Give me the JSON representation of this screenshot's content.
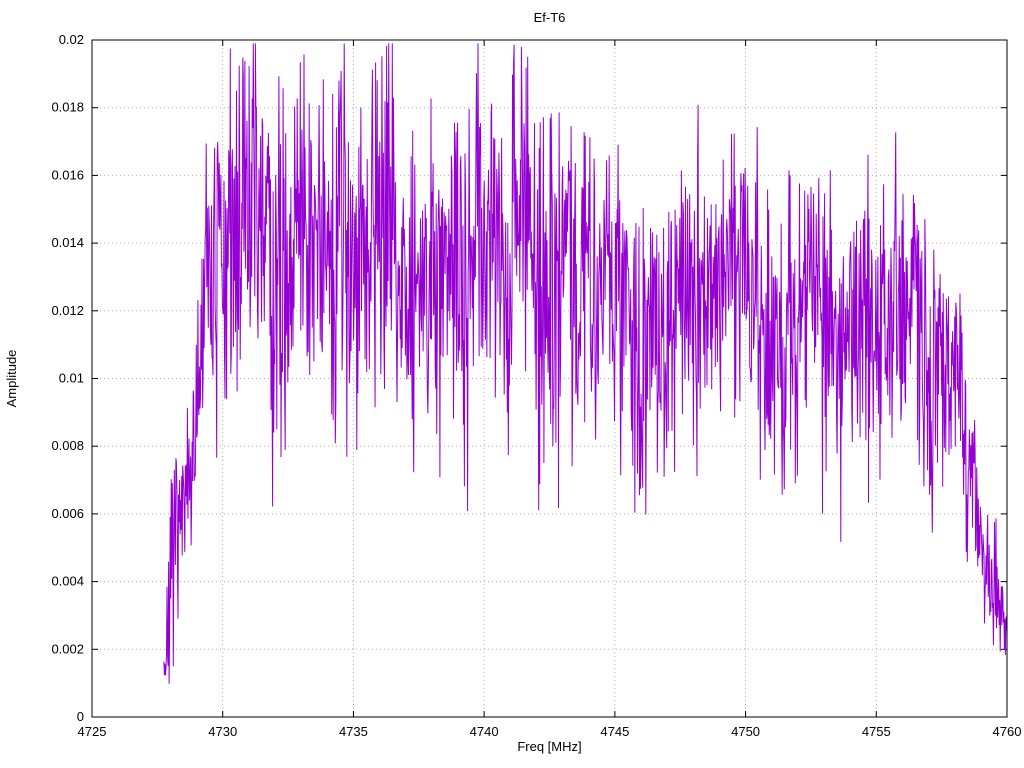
{
  "chart_data": {
    "type": "line",
    "title": "Ef-T6",
    "xlabel": "Freq [MHz]",
    "ylabel": "Amplitude",
    "xlim": [
      4725,
      4760
    ],
    "ylim": [
      0,
      0.02
    ],
    "x_tick_labels": [
      "4725",
      "4730",
      "4735",
      "4740",
      "4745",
      "4750",
      "4755",
      "4760"
    ],
    "x_tick_values": [
      4725,
      4730,
      4735,
      4740,
      4745,
      4750,
      4755,
      4760
    ],
    "y_tick_labels": [
      "0",
      "0.002",
      "0.004",
      "0.006",
      "0.008",
      "0.01",
      "0.012",
      "0.014",
      "0.016",
      "0.018",
      "0.02"
    ],
    "y_tick_values": [
      0,
      0.002,
      0.004,
      0.006,
      0.008,
      0.01,
      0.012,
      0.014,
      0.016,
      0.018,
      0.02
    ],
    "grid": true,
    "legend": "none",
    "line_color": "#9400d3",
    "grid_color": "#b0b0b0",
    "border_color": "#000000",
    "series": [
      {
        "name": "Ef-T6",
        "description": "Dense noisy bandpass spectrum from ~4727.8 to 4760 MHz; envelope control points as [freq_MHz, mean_amplitude, spread]",
        "envelope": [
          [
            4727.75,
            0.0015,
            0.0008
          ],
          [
            4728.0,
            0.004,
            0.002
          ],
          [
            4728.5,
            0.0055,
            0.0015
          ],
          [
            4729.0,
            0.0085,
            0.0025
          ],
          [
            4729.5,
            0.013,
            0.003
          ],
          [
            4730.0,
            0.014,
            0.0035
          ],
          [
            4731.0,
            0.0145,
            0.0035
          ],
          [
            4732.0,
            0.013,
            0.0035
          ],
          [
            4733.0,
            0.0145,
            0.0035
          ],
          [
            4734.0,
            0.014,
            0.004
          ],
          [
            4735.0,
            0.0145,
            0.004
          ],
          [
            4736.0,
            0.0135,
            0.0035
          ],
          [
            4737.0,
            0.014,
            0.0035
          ],
          [
            4738.0,
            0.0145,
            0.0035
          ],
          [
            4739.0,
            0.014,
            0.0035
          ],
          [
            4740.0,
            0.0135,
            0.0035
          ],
          [
            4741.0,
            0.0135,
            0.0035
          ],
          [
            4742.0,
            0.013,
            0.0035
          ],
          [
            4743.0,
            0.013,
            0.0035
          ],
          [
            4744.0,
            0.0125,
            0.003
          ],
          [
            4745.0,
            0.0125,
            0.003
          ],
          [
            4746.0,
            0.0115,
            0.003
          ],
          [
            4747.0,
            0.0115,
            0.0028
          ],
          [
            4748.0,
            0.012,
            0.003
          ],
          [
            4749.0,
            0.0125,
            0.003
          ],
          [
            4750.0,
            0.012,
            0.003
          ],
          [
            4751.0,
            0.0115,
            0.003
          ],
          [
            4752.0,
            0.0115,
            0.003
          ],
          [
            4753.0,
            0.012,
            0.0032
          ],
          [
            4754.0,
            0.0115,
            0.003
          ],
          [
            4755.0,
            0.0115,
            0.003
          ],
          [
            4756.0,
            0.0115,
            0.0028
          ],
          [
            4757.0,
            0.0115,
            0.0028
          ],
          [
            4757.5,
            0.011,
            0.0025
          ],
          [
            4758.0,
            0.01,
            0.0025
          ],
          [
            4758.5,
            0.0085,
            0.002
          ],
          [
            4759.0,
            0.006,
            0.0018
          ],
          [
            4759.5,
            0.0038,
            0.0012
          ],
          [
            4760.0,
            0.0028,
            0.001
          ]
        ]
      }
    ],
    "noise_seed": 7,
    "samples_per_mhz": 50
  }
}
